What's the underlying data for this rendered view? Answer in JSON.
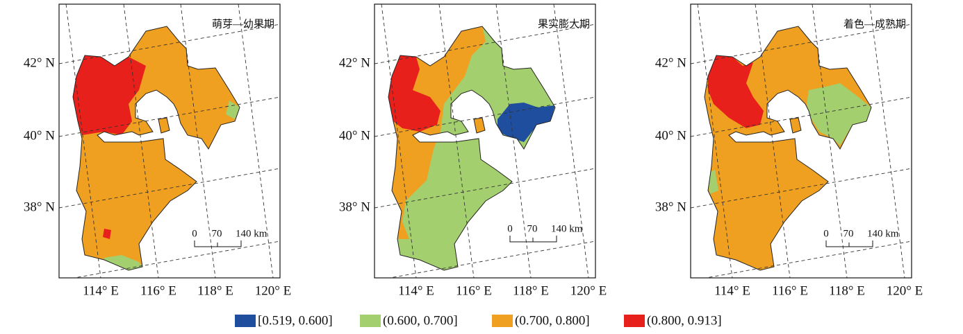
{
  "panels": [
    {
      "title": "萌芽—幼果期"
    },
    {
      "title": "果实膨大期"
    },
    {
      "title": "着色—成熟期"
    }
  ],
  "lat_labels": [
    "42° N",
    "40° N",
    "38° N"
  ],
  "lon_labels": [
    "114° E",
    "116° E",
    "118° E",
    "120° E"
  ],
  "scale_bar": [
    "0",
    "70",
    "140 km"
  ],
  "legend": [
    {
      "label": "[0.519, 0.600]",
      "color": "#1f4e9e"
    },
    {
      "label": "(0.600, 0.700]",
      "color": "#a3cf6e"
    },
    {
      "label": "(0.700, 0.800]",
      "color": "#f0a020"
    },
    {
      "label": "(0.800, 0.913]",
      "color": "#e8201c"
    }
  ]
}
